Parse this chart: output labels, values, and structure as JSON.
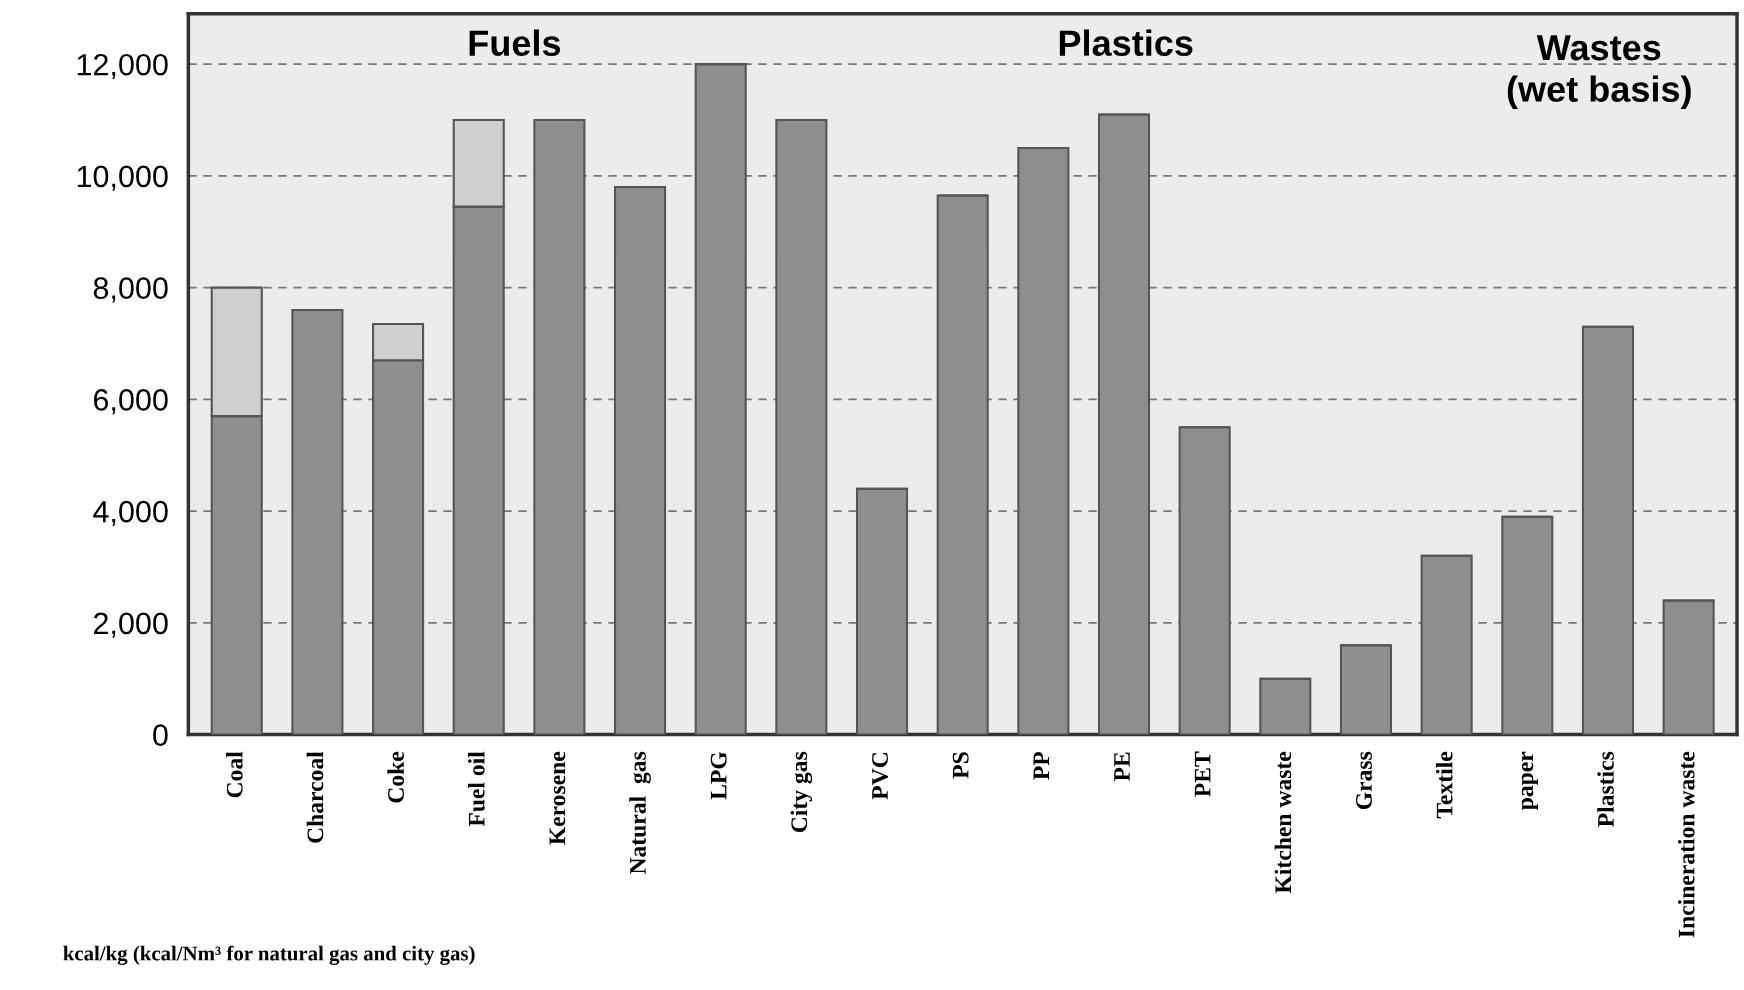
{
  "chart_data": {
    "type": "bar",
    "stacked": true,
    "categories": [
      "Coal",
      "Charcoal",
      "Coke",
      "Fuel oil",
      "Kerosene",
      "Natural  gas",
      "LPG",
      "City gas",
      "PVC",
      "PS",
      "PP",
      "PE",
      "PET",
      "Kitchen waste",
      "Grass",
      "Textile",
      "paper",
      "Plastics",
      "Incineration waste"
    ],
    "series": [
      {
        "color": "#8e8e8e",
        "values": [
          5700,
          7600,
          6700,
          9450,
          11000,
          9800,
          12000,
          11000,
          4400,
          9650,
          10500,
          11100,
          5500,
          1000,
          1600,
          3200,
          3900,
          7300,
          2400
        ]
      },
      {
        "color": "#cfcfcf",
        "values": [
          2300,
          null,
          650,
          1550,
          null,
          null,
          null,
          null,
          null,
          null,
          null,
          null,
          null,
          null,
          null,
          null,
          null,
          null,
          null
        ]
      }
    ],
    "ylim": [
      0,
      12900
    ],
    "yticks": [
      0,
      {
        "value": 2000,
        "label": "2,000"
      },
      {
        "value": 4000,
        "label": "4,000"
      },
      {
        "value": 6000,
        "label": "6,000"
      },
      {
        "value": 8000,
        "label": "8,000"
      },
      {
        "value": 10000,
        "label": "10,000"
      },
      {
        "value": 12000,
        "label": "12,000"
      }
    ],
    "grid": "y",
    "legend": false,
    "annotations": [
      "Fuels",
      "Plastics",
      "Wastes\n(wet basis)",
      "kcal/kg (kcal/Nm³ for natural gas and city gas)"
    ]
  }
}
